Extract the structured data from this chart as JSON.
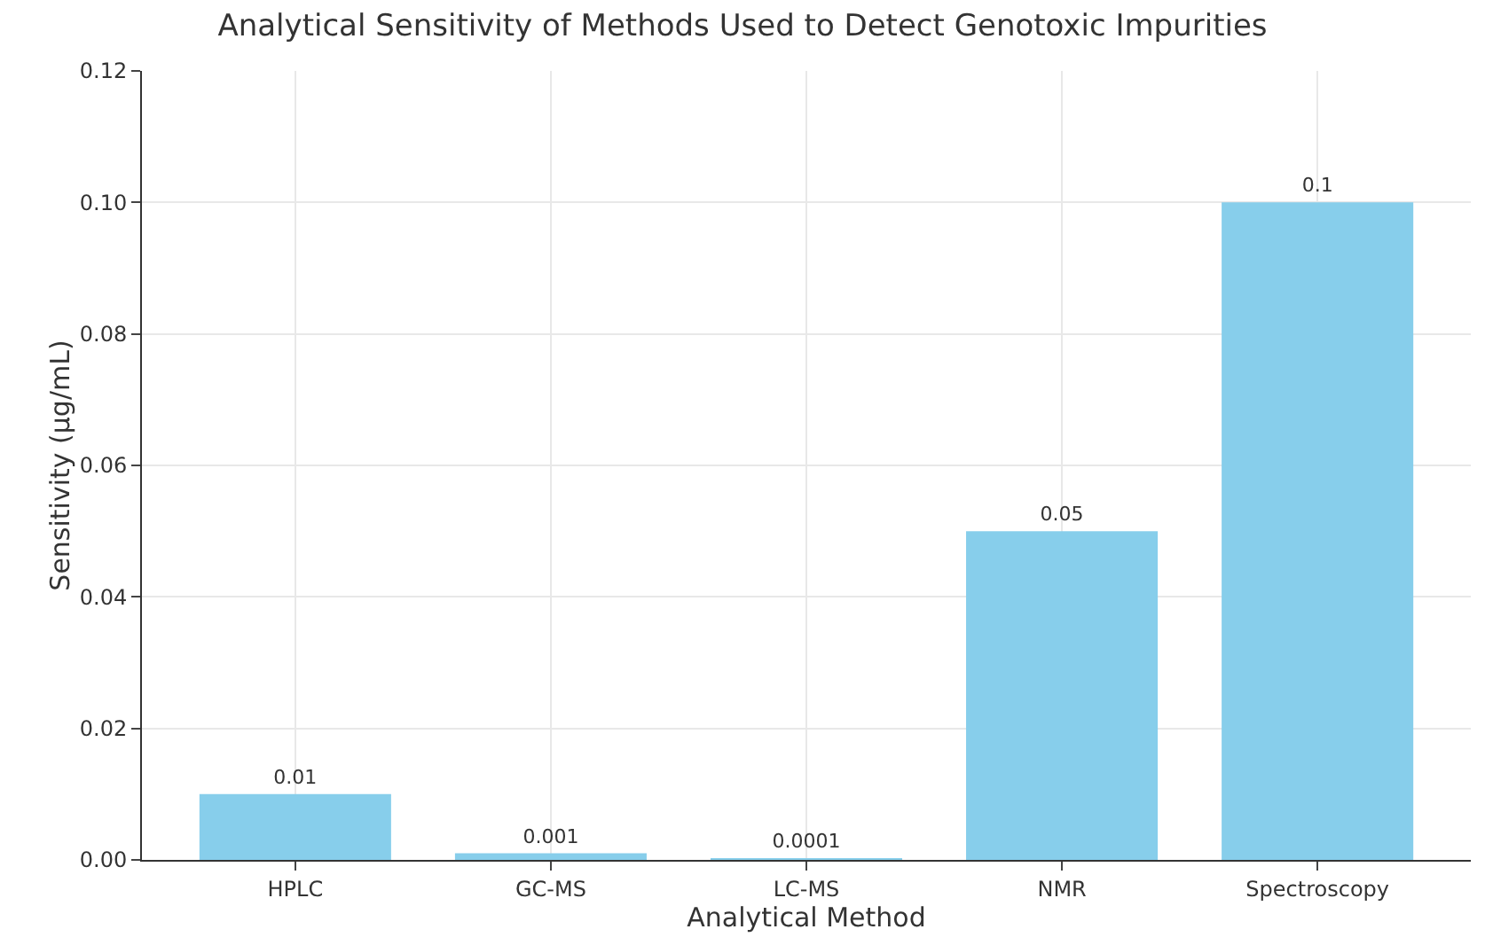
{
  "chart_data": {
    "type": "bar",
    "title": "Analytical Sensitivity of Methods Used to Detect Genotoxic Impurities",
    "xlabel": "Analytical Method",
    "ylabel": "Sensitivity (µg/mL)",
    "categories": [
      "HPLC",
      "GC-MS",
      "LC-MS",
      "NMR",
      "Spectroscopy"
    ],
    "values": [
      0.01,
      0.001,
      0.0001,
      0.05,
      0.1
    ],
    "color": "#87ceeb",
    "ylim": [
      0,
      0.12
    ],
    "yticks": [
      {
        "value": 0,
        "label": "0.00"
      },
      {
        "value": 0.02,
        "label": "0.02"
      },
      {
        "value": 0.04,
        "label": "0.04"
      },
      {
        "value": 0.06,
        "label": "0.06"
      },
      {
        "value": 0.08,
        "label": "0.08"
      },
      {
        "value": 0.1,
        "label": "0.10"
      },
      {
        "value": 0.12,
        "label": "0.12"
      }
    ],
    "grid": true,
    "data_labels": true
  }
}
